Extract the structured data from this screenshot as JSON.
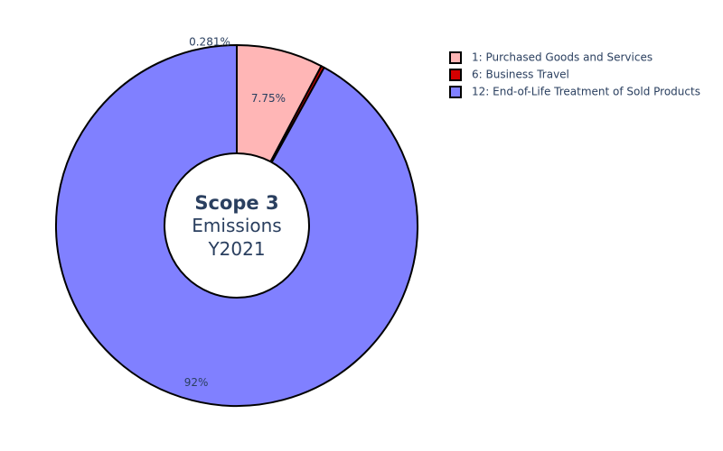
{
  "chart_data": {
    "type": "pie",
    "hole": true,
    "center_text": {
      "title": "Scope 3",
      "lines": [
        "Emissions",
        "Y2021"
      ]
    },
    "slices": [
      {
        "label": "1: Purchased Goods and Services",
        "value": 7.75,
        "display": "7.75%",
        "color": "#ffb6b6"
      },
      {
        "label": "6: Business Travel",
        "value": 0.281,
        "display": "0.281%",
        "color": "#d40000"
      },
      {
        "label": "12: End-of-Life Treatment of Sold Products",
        "value": 92,
        "display": "92%",
        "color": "#8080ff"
      }
    ],
    "legend": {
      "placement": "top-right",
      "items": [
        "1: Purchased Goods and Services",
        "6: Business Travel",
        "12: End-of-Life Treatment of Sold Products"
      ]
    },
    "slice_border_color": "#000000"
  }
}
